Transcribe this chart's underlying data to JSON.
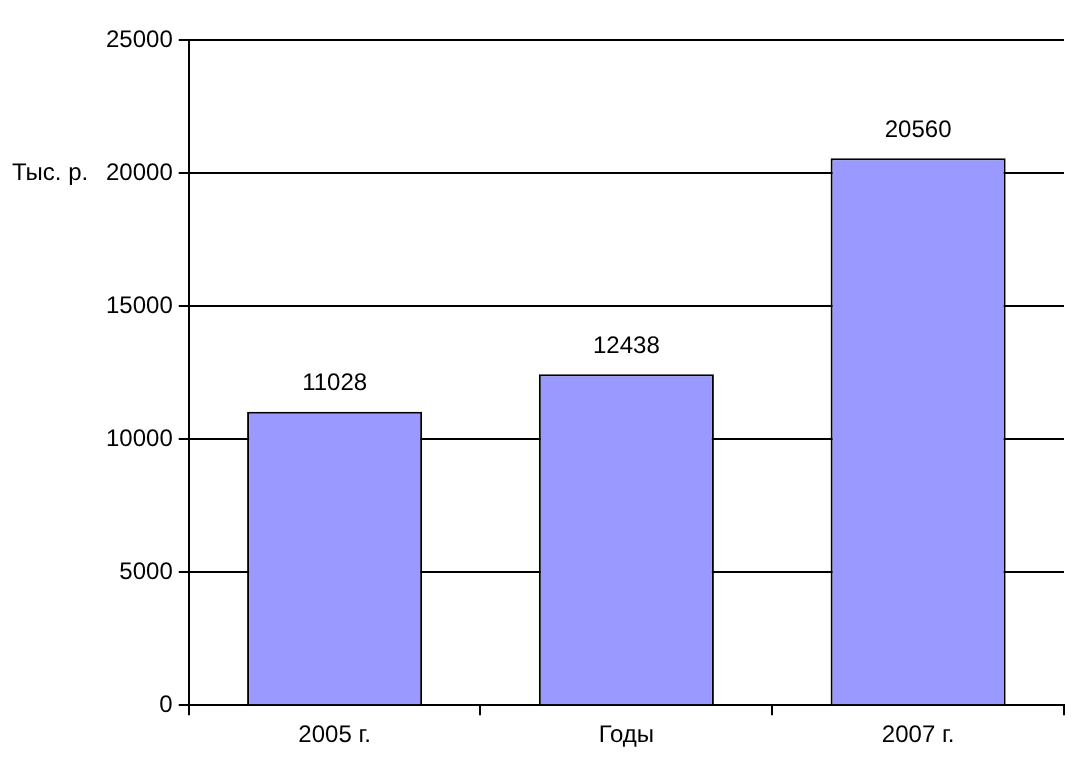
{
  "chart_data": {
    "type": "bar",
    "ylabel": "Тыс. р.",
    "categories": [
      "2005 г.",
      "Годы",
      "2007 г."
    ],
    "values": [
      11028,
      12438,
      20560
    ],
    "color": "#9999ff",
    "ylim": [
      0,
      25000
    ],
    "yticks": [
      0,
      5000,
      10000,
      15000,
      20000,
      25000
    ],
    "grid": "y",
    "legend": false,
    "data_labels": true
  }
}
